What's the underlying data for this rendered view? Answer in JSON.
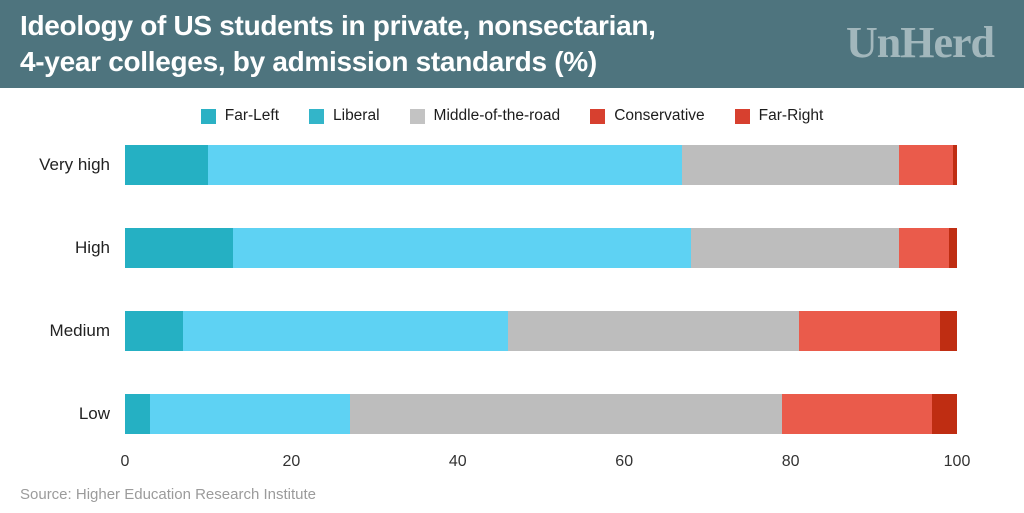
{
  "header": {
    "title_line1": "Ideology of US students in private, nonsectarian,",
    "title_line2": "4-year colleges, by admission standards (%)",
    "logo": "UnHerd",
    "background_color": "#4e747e",
    "title_color": "#ffffff",
    "logo_color": "#a2b7bc"
  },
  "legend": {
    "items": [
      {
        "label": "Far-Left",
        "color": "#2bb1c4"
      },
      {
        "label": "Liberal",
        "color": "#33b5c9"
      },
      {
        "label": "Middle-of-the-road",
        "color": "#c3c3c3"
      },
      {
        "label": "Conservative",
        "color": "#d7402f"
      },
      {
        "label": "Far-Right",
        "color": "#d7402f"
      }
    ]
  },
  "chart_data": {
    "type": "bar",
    "orientation": "horizontal",
    "stacked": true,
    "title": "Ideology of US students in private, nonsectarian, 4-year colleges, by admission standards (%)",
    "categories": [
      "Very high",
      "High",
      "Medium",
      "Low"
    ],
    "series": [
      {
        "name": "Far-Left",
        "color": "#25b0c3",
        "values": [
          10,
          13,
          7,
          3
        ]
      },
      {
        "name": "Liberal",
        "color": "#5ed2f3",
        "values": [
          57,
          55,
          39,
          24
        ]
      },
      {
        "name": "Middle-of-the-road",
        "color": "#bdbdbd",
        "values": [
          26,
          25,
          35,
          52
        ]
      },
      {
        "name": "Conservative",
        "color": "#ea5b4b",
        "values": [
          6.5,
          6,
          17,
          18
        ]
      },
      {
        "name": "Far-Right",
        "color": "#bf2d12",
        "values": [
          0.5,
          1,
          2,
          3
        ]
      }
    ],
    "xlabel": "",
    "ylabel": "",
    "xlim": [
      0,
      100
    ],
    "x_ticks": [
      0,
      20,
      40,
      60,
      80,
      100
    ],
    "grid": false,
    "legend_position": "top"
  },
  "source": "Source: Higher Education Research Institute"
}
